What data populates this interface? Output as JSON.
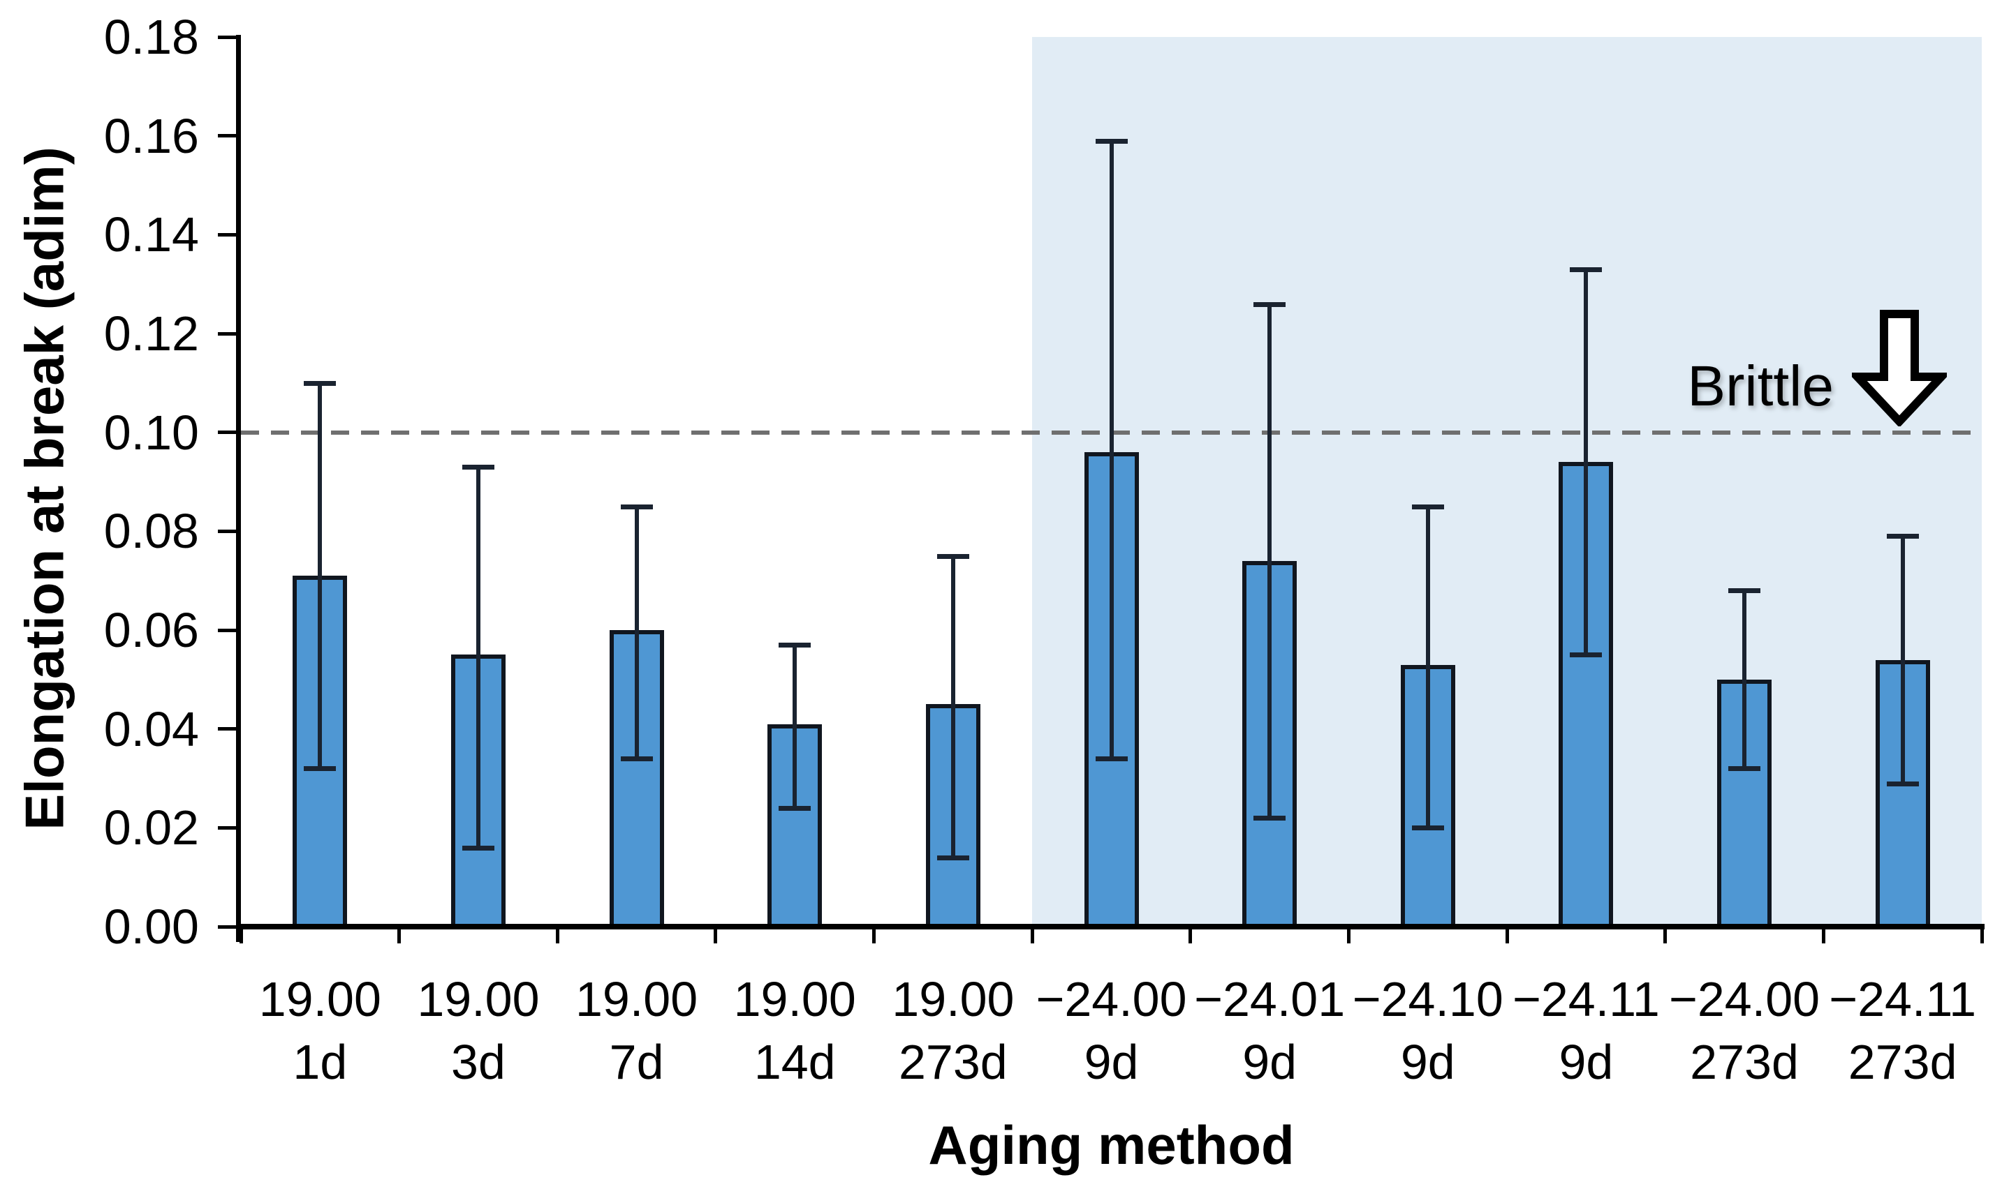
{
  "chart_data": {
    "type": "bar",
    "title": "",
    "xlabel": "Aging method",
    "ylabel": "Elongation at break (adim)",
    "ylim": [
      0,
      0.18
    ],
    "ytick_step": 0.02,
    "yticks": [
      "0.00",
      "0.02",
      "0.04",
      "0.06",
      "0.08",
      "0.10",
      "0.12",
      "0.14",
      "0.16",
      "0.18"
    ],
    "grid": "off",
    "legend": "none",
    "categories": [
      {
        "temp": "19.00",
        "days": "1d"
      },
      {
        "temp": "19.00",
        "days": "3d"
      },
      {
        "temp": "19.00",
        "days": "7d"
      },
      {
        "temp": "19.00",
        "days": "14d"
      },
      {
        "temp": "19.00",
        "days": "273d"
      },
      {
        "temp": "−24.00",
        "days": "9d"
      },
      {
        "temp": "−24.01",
        "days": "9d"
      },
      {
        "temp": "−24.10",
        "days": "9d"
      },
      {
        "temp": "−24.11",
        "days": "9d"
      },
      {
        "temp": "−24.00",
        "days": "273d"
      },
      {
        "temp": "−24.11",
        "days": "273d"
      }
    ],
    "values": [
      0.071,
      0.055,
      0.06,
      0.041,
      0.045,
      0.096,
      0.074,
      0.053,
      0.094,
      0.05,
      0.054
    ],
    "error_high": [
      0.11,
      0.093,
      0.085,
      0.057,
      0.075,
      0.159,
      0.126,
      0.085,
      0.133,
      0.068,
      0.079
    ],
    "error_low": [
      0.032,
      0.016,
      0.034,
      0.024,
      0.014,
      0.034,
      0.022,
      0.02,
      0.055,
      0.032,
      0.029
    ],
    "reference_line": {
      "value": 0.1,
      "style": "dashed",
      "color": "#6f6f6f"
    },
    "annotation": {
      "label": "Brittle",
      "icon": "down-arrow"
    },
    "highlight_region": {
      "start_category_index": 5,
      "end_category_index": 10,
      "color": "#e1ecf5"
    },
    "colors": {
      "bar_fill": "#4f97d3",
      "bar_border": "#10161f",
      "error_bar": "#1a2330",
      "axis": "#000000",
      "background": "#ffffff"
    }
  }
}
